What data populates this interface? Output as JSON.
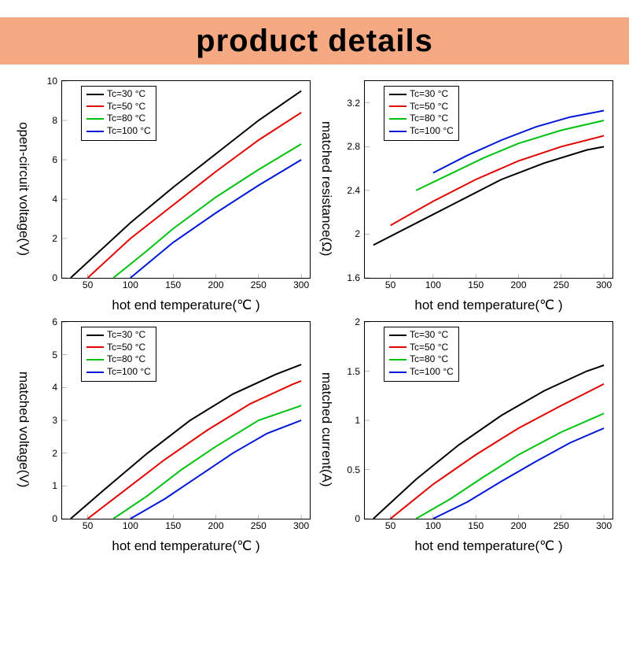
{
  "title": "product details",
  "title_bg": "#f4a983",
  "legend_items": [
    {
      "label": "Tc=30 °C",
      "color": "#000000"
    },
    {
      "label": "Tc=50 °C",
      "color": "#e20000"
    },
    {
      "label": "Tc=80 °C",
      "color": "#00c210"
    },
    {
      "label": "Tc=100 °C",
      "color": "#0018d6"
    }
  ],
  "panels": [
    {
      "ylabel": "open-circuit voltage(V)",
      "xlabel": "hot end temperature(℃ )",
      "xlim": [
        20,
        310
      ],
      "ylim": [
        0,
        10
      ],
      "xticks": [
        50,
        100,
        150,
        200,
        250,
        300
      ],
      "yticks": [
        0,
        2,
        4,
        6,
        8,
        10
      ],
      "series": [
        {
          "color": "#000000",
          "pts": [
            [
              30,
              0
            ],
            [
              100,
              2.8
            ],
            [
              150,
              4.6
            ],
            [
              200,
              6.3
            ],
            [
              250,
              8.0
            ],
            [
              300,
              9.5
            ]
          ]
        },
        {
          "color": "#e20000",
          "pts": [
            [
              50,
              0
            ],
            [
              100,
              2.0
            ],
            [
              150,
              3.7
            ],
            [
              200,
              5.4
            ],
            [
              250,
              7.0
            ],
            [
              300,
              8.4
            ]
          ]
        },
        {
          "color": "#00c210",
          "pts": [
            [
              80,
              0
            ],
            [
              120,
              1.4
            ],
            [
              150,
              2.5
            ],
            [
              200,
              4.1
            ],
            [
              250,
              5.5
            ],
            [
              300,
              6.8
            ]
          ]
        },
        {
          "color": "#0018d6",
          "pts": [
            [
              100,
              0
            ],
            [
              150,
              1.8
            ],
            [
              200,
              3.3
            ],
            [
              250,
              4.7
            ],
            [
              300,
              6.0
            ]
          ]
        }
      ]
    },
    {
      "ylabel": "matched resistance(Ω)",
      "xlabel": "hot end temperature(℃ )",
      "xlim": [
        20,
        310
      ],
      "ylim": [
        1.6,
        3.4
      ],
      "xticks": [
        50,
        100,
        150,
        200,
        250,
        300
      ],
      "yticks": [
        1.6,
        2.0,
        2.4,
        2.8,
        3.2
      ],
      "series": [
        {
          "color": "#000000",
          "pts": [
            [
              30,
              1.9
            ],
            [
              80,
              2.1
            ],
            [
              130,
              2.3
            ],
            [
              180,
              2.5
            ],
            [
              230,
              2.65
            ],
            [
              280,
              2.77
            ],
            [
              300,
              2.8
            ]
          ]
        },
        {
          "color": "#e20000",
          "pts": [
            [
              50,
              2.08
            ],
            [
              100,
              2.3
            ],
            [
              150,
              2.5
            ],
            [
              200,
              2.67
            ],
            [
              250,
              2.8
            ],
            [
              300,
              2.9
            ]
          ]
        },
        {
          "color": "#00c210",
          "pts": [
            [
              80,
              2.4
            ],
            [
              120,
              2.55
            ],
            [
              160,
              2.7
            ],
            [
              200,
              2.83
            ],
            [
              250,
              2.95
            ],
            [
              300,
              3.04
            ]
          ]
        },
        {
          "color": "#0018d6",
          "pts": [
            [
              100,
              2.56
            ],
            [
              140,
              2.72
            ],
            [
              180,
              2.86
            ],
            [
              220,
              2.98
            ],
            [
              260,
              3.07
            ],
            [
              300,
              3.13
            ]
          ]
        }
      ]
    },
    {
      "ylabel": "matched voltage(V)",
      "xlabel": "hot end temperature(℃ )",
      "xlim": [
        20,
        310
      ],
      "ylim": [
        0,
        6
      ],
      "xticks": [
        50,
        100,
        150,
        200,
        250,
        300
      ],
      "yticks": [
        0,
        1,
        2,
        3,
        4,
        5,
        6
      ],
      "series": [
        {
          "color": "#000000",
          "pts": [
            [
              30,
              0
            ],
            [
              70,
              0.9
            ],
            [
              120,
              2.0
            ],
            [
              170,
              3.0
            ],
            [
              220,
              3.8
            ],
            [
              270,
              4.4
            ],
            [
              300,
              4.7
            ]
          ]
        },
        {
          "color": "#e20000",
          "pts": [
            [
              50,
              0
            ],
            [
              90,
              0.8
            ],
            [
              140,
              1.8
            ],
            [
              190,
              2.7
            ],
            [
              240,
              3.5
            ],
            [
              290,
              4.1
            ],
            [
              300,
              4.2
            ]
          ]
        },
        {
          "color": "#00c210",
          "pts": [
            [
              80,
              0
            ],
            [
              120,
              0.7
            ],
            [
              160,
              1.5
            ],
            [
              200,
              2.2
            ],
            [
              250,
              3.0
            ],
            [
              300,
              3.45
            ]
          ]
        },
        {
          "color": "#0018d6",
          "pts": [
            [
              100,
              0
            ],
            [
              140,
              0.6
            ],
            [
              180,
              1.3
            ],
            [
              220,
              2.0
            ],
            [
              260,
              2.6
            ],
            [
              300,
              3.0
            ]
          ]
        }
      ]
    },
    {
      "ylabel": "matched current(A)",
      "xlabel": "hot end temperature(℃ )",
      "xlim": [
        20,
        310
      ],
      "ylim": [
        0,
        2.0
      ],
      "xticks": [
        50,
        100,
        150,
        200,
        250,
        300
      ],
      "yticks": [
        0.0,
        0.5,
        1.0,
        1.5,
        2.0
      ],
      "series": [
        {
          "color": "#000000",
          "pts": [
            [
              30,
              0
            ],
            [
              80,
              0.4
            ],
            [
              130,
              0.75
            ],
            [
              180,
              1.05
            ],
            [
              230,
              1.3
            ],
            [
              280,
              1.5
            ],
            [
              300,
              1.56
            ]
          ]
        },
        {
          "color": "#e20000",
          "pts": [
            [
              50,
              0
            ],
            [
              100,
              0.35
            ],
            [
              150,
              0.65
            ],
            [
              200,
              0.92
            ],
            [
              250,
              1.15
            ],
            [
              300,
              1.37
            ]
          ]
        },
        {
          "color": "#00c210",
          "pts": [
            [
              80,
              0
            ],
            [
              120,
              0.2
            ],
            [
              160,
              0.43
            ],
            [
              200,
              0.65
            ],
            [
              250,
              0.88
            ],
            [
              300,
              1.07
            ]
          ]
        },
        {
          "color": "#0018d6",
          "pts": [
            [
              100,
              0
            ],
            [
              140,
              0.17
            ],
            [
              180,
              0.38
            ],
            [
              220,
              0.58
            ],
            [
              260,
              0.77
            ],
            [
              300,
              0.92
            ]
          ]
        }
      ]
    }
  ]
}
